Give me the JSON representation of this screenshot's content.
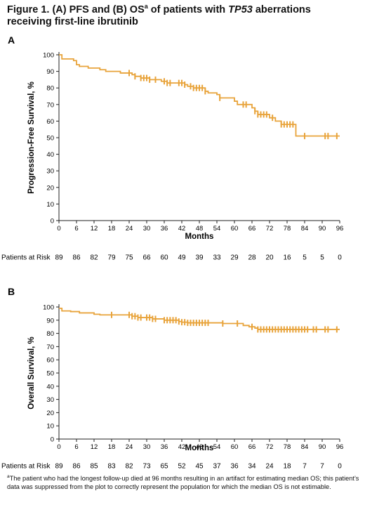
{
  "figure": {
    "title_prefix": "Figure 1. (A) PFS and (B) OS",
    "title_sup": "a",
    "title_mid": " of patients with ",
    "title_italic": "TP53",
    "title_suffix": " aberrations receiving first-line ibrutinib",
    "footnote_sup": "a",
    "footnote_text": "The patient who had the longest follow-up died at 96 months resulting in an artifact for estimating median OS; this patient’s data was suppressed from the plot to correctly represent the population for which the median OS is not estimable."
  },
  "chart_data": [
    {
      "panel": "A",
      "type": "line",
      "color": "#E8A33A",
      "xlabel": "Months",
      "ylabel": "Progression-Free Survival, %",
      "xlim": [
        0,
        96
      ],
      "ylim": [
        0,
        100
      ],
      "xticks": [
        0,
        6,
        12,
        18,
        24,
        30,
        36,
        42,
        48,
        54,
        60,
        66,
        72,
        78,
        84,
        90,
        96
      ],
      "yticks": [
        0,
        10,
        20,
        30,
        40,
        50,
        60,
        70,
        80,
        90,
        100
      ],
      "steps": [
        [
          0,
          100
        ],
        [
          1,
          97.5
        ],
        [
          5,
          96.5
        ],
        [
          6,
          94
        ],
        [
          7,
          93
        ],
        [
          10,
          92
        ],
        [
          14,
          91
        ],
        [
          16,
          90
        ],
        [
          21,
          89
        ],
        [
          25,
          88
        ],
        [
          26,
          87
        ],
        [
          28,
          86
        ],
        [
          31,
          85
        ],
        [
          35,
          84
        ],
        [
          37,
          83
        ],
        [
          43,
          82
        ],
        [
          44,
          81
        ],
        [
          46,
          80
        ],
        [
          50,
          78
        ],
        [
          51,
          77
        ],
        [
          54,
          76
        ],
        [
          55,
          74
        ],
        [
          60,
          72
        ],
        [
          61,
          70
        ],
        [
          66,
          68
        ],
        [
          67,
          66
        ],
        [
          68,
          64
        ],
        [
          72,
          62
        ],
        [
          74,
          60
        ],
        [
          76,
          58
        ],
        [
          81,
          51
        ],
        [
          96,
          51
        ]
      ],
      "censor_x": [
        24,
        26,
        28,
        29,
        30,
        31,
        33,
        36,
        37,
        38,
        41,
        42,
        43,
        45,
        46,
        47,
        48,
        49,
        50,
        55,
        63,
        64,
        67,
        68,
        69,
        70,
        71,
        73,
        76,
        77,
        78,
        79,
        80,
        84,
        91,
        92,
        95
      ],
      "risk_label": "Patients at Risk",
      "at_risk": [
        89,
        86,
        82,
        79,
        75,
        66,
        60,
        49,
        39,
        33,
        29,
        28,
        20,
        16,
        5,
        5,
        0
      ]
    },
    {
      "panel": "B",
      "type": "line",
      "color": "#E8A33A",
      "xlabel": "Months",
      "ylabel": "Overall Survival, %",
      "xlim": [
        0,
        96
      ],
      "ylim": [
        0,
        100
      ],
      "xticks": [
        0,
        6,
        12,
        18,
        24,
        30,
        36,
        42,
        48,
        54,
        60,
        66,
        72,
        78,
        84,
        90,
        96
      ],
      "yticks": [
        0,
        10,
        20,
        30,
        40,
        50,
        60,
        70,
        80,
        90,
        100
      ],
      "steps": [
        [
          0,
          99
        ],
        [
          1,
          97
        ],
        [
          4,
          96.5
        ],
        [
          7,
          95.5
        ],
        [
          12,
          94.5
        ],
        [
          14,
          94
        ],
        [
          25,
          93
        ],
        [
          27,
          92
        ],
        [
          32,
          91
        ],
        [
          36,
          90
        ],
        [
          41,
          89
        ],
        [
          42,
          88.5
        ],
        [
          44,
          88
        ],
        [
          56,
          87.5
        ],
        [
          63,
          86
        ],
        [
          65,
          85
        ],
        [
          67,
          84
        ],
        [
          68,
          83
        ],
        [
          96,
          83
        ]
      ],
      "censor_x": [
        18,
        24,
        25,
        26,
        27,
        28,
        30,
        31,
        32,
        33,
        36,
        37,
        38,
        39,
        40,
        41,
        42,
        43,
        44,
        45,
        46,
        47,
        48,
        49,
        50,
        51,
        56,
        61,
        66,
        68,
        69,
        70,
        71,
        72,
        73,
        74,
        75,
        76,
        77,
        78,
        79,
        80,
        81,
        82,
        83,
        84,
        85,
        87,
        88,
        91,
        92,
        95
      ],
      "risk_label": "Patients at Risk",
      "at_risk": [
        89,
        86,
        85,
        83,
        82,
        73,
        65,
        52,
        45,
        37,
        36,
        34,
        24,
        18,
        7,
        7,
        0
      ]
    }
  ]
}
